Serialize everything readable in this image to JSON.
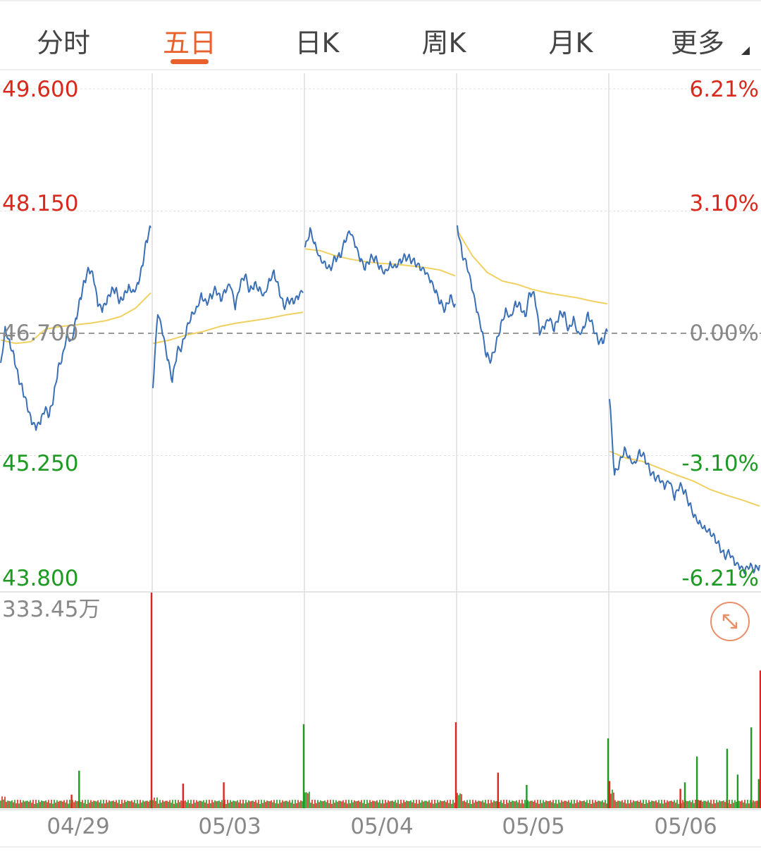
{
  "tabs": [
    {
      "label": "分时",
      "active": false
    },
    {
      "label": "五日",
      "active": true
    },
    {
      "label": "日K",
      "active": false
    },
    {
      "label": "周K",
      "active": false
    },
    {
      "label": "月K",
      "active": false
    },
    {
      "label": "更多",
      "active": false
    }
  ],
  "colors": {
    "accent": "#e8612c",
    "price_line": "#3a6fb5",
    "avg_line": "#f0d060",
    "up": "#d9281c",
    "down": "#1d9a21",
    "neutral": "#888888"
  },
  "chart_data": {
    "type": "line",
    "title": "",
    "prev_close": 46.7,
    "ylim": [
      43.8,
      49.6
    ],
    "price_ticks": [
      "49.600",
      "48.150",
      "46.700",
      "45.250",
      "43.800"
    ],
    "pct_ticks": [
      "6.21%",
      "3.10%",
      "0.00%",
      "-3.10%",
      "-6.21%"
    ],
    "volume_max_label": "333.45万",
    "volume_max": 333.45,
    "days": [
      "04/29",
      "05/03",
      "05/04",
      "05/05",
      "05/06"
    ],
    "series": [
      {
        "name": "price",
        "days": [
          [
            46.35,
            46.78,
            46.62,
            46.45,
            46.18,
            46.02,
            45.82,
            45.62,
            45.55,
            45.62,
            45.78,
            45.72,
            45.95,
            46.3,
            46.45,
            46.72,
            46.62,
            46.88,
            47.12,
            47.32,
            47.45,
            47.35,
            47.02,
            46.95,
            47.05,
            47.18,
            47.22,
            47.08,
            47.18,
            47.28,
            47.22,
            47.3,
            47.5,
            47.8,
            47.95
          ],
          [
            46.05,
            46.92,
            46.68,
            46.38,
            46.12,
            46.48,
            46.55,
            46.78,
            46.95,
            47.02,
            47.18,
            47.08,
            47.15,
            47.22,
            47.08,
            47.18,
            47.25,
            46.98,
            47.25,
            47.38,
            47.2,
            47.3,
            47.25,
            47.18,
            47.35,
            47.45,
            47.25,
            47.02,
            47.08,
            47.05,
            47.1,
            47.18
          ],
          [
            47.72,
            47.95,
            47.78,
            47.62,
            47.55,
            47.48,
            47.6,
            47.6,
            47.78,
            47.88,
            47.72,
            47.55,
            47.45,
            47.58,
            47.6,
            47.5,
            47.45,
            47.55,
            47.52,
            47.58,
            47.62,
            47.58,
            47.52,
            47.45,
            47.4,
            47.3,
            47.18,
            47.05,
            46.98,
            47.15,
            47.05
          ],
          [
            47.98,
            47.62,
            47.48,
            47.22,
            46.95,
            46.72,
            46.42,
            46.38,
            46.58,
            46.82,
            47.0,
            46.92,
            47.08,
            47.05,
            46.9,
            47.18,
            47.12,
            46.68,
            46.75,
            46.85,
            46.72,
            46.9,
            46.95,
            46.75,
            46.9,
            46.72,
            46.78,
            46.95,
            46.8,
            46.62,
            46.58,
            46.72
          ],
          [
            45.92,
            45.02,
            45.18,
            45.35,
            45.25,
            45.18,
            45.32,
            45.25,
            45.08,
            44.98,
            44.95,
            44.85,
            44.92,
            44.72,
            44.88,
            44.82,
            44.68,
            44.55,
            44.48,
            44.42,
            44.38,
            44.3,
            44.18,
            44.05,
            44.08,
            43.95,
            43.9,
            43.85,
            43.92,
            43.88,
            43.95
          ]
        ]
      },
      {
        "name": "avg",
        "days": [
          [
            46.62,
            46.58,
            46.6,
            46.75,
            46.78,
            46.8,
            46.82,
            46.85,
            46.9,
            47.0,
            47.18
          ],
          [
            46.58,
            46.62,
            46.68,
            46.72,
            46.78,
            46.82,
            46.85,
            46.88,
            46.92,
            46.95
          ],
          [
            47.7,
            47.68,
            47.62,
            47.58,
            47.55,
            47.53,
            47.52,
            47.5,
            47.48,
            47.45,
            47.38
          ],
          [
            47.92,
            47.62,
            47.42,
            47.32,
            47.28,
            47.22,
            47.18,
            47.15,
            47.12,
            47.08,
            47.05
          ],
          [
            45.3,
            45.22,
            45.18,
            45.1,
            45.02,
            44.95,
            44.85,
            44.78,
            44.72,
            44.65
          ]
        ]
      }
    ],
    "volume": {
      "spikes": [
        {
          "day": 0,
          "pos": 0.52,
          "value": 58,
          "dir": "down"
        },
        {
          "day": 0,
          "pos": 0.47,
          "value": 21,
          "dir": "up"
        },
        {
          "day": 0,
          "pos": 1.0,
          "value": 333.45,
          "dir": "up"
        },
        {
          "day": 1,
          "pos": 0.2,
          "value": 38,
          "dir": "up"
        },
        {
          "day": 1,
          "pos": 0.47,
          "value": 40,
          "dir": "up"
        },
        {
          "day": 1,
          "pos": 1.0,
          "value": 130,
          "dir": "down"
        },
        {
          "day": 2,
          "pos": 1.0,
          "value": 133,
          "dir": "up"
        },
        {
          "day": 3,
          "pos": 0.27,
          "value": 55,
          "dir": "up"
        },
        {
          "day": 3,
          "pos": 0.46,
          "value": 36,
          "dir": "down"
        },
        {
          "day": 3,
          "pos": 1.0,
          "value": 108,
          "dir": "down"
        },
        {
          "day": 4,
          "pos": 0.0,
          "value": 42,
          "dir": "up"
        },
        {
          "day": 4,
          "pos": 0.5,
          "value": 40,
          "dir": "down"
        },
        {
          "day": 4,
          "pos": 0.58,
          "value": 80,
          "dir": "down"
        },
        {
          "day": 4,
          "pos": 0.47,
          "value": 30,
          "dir": "up"
        },
        {
          "day": 4,
          "pos": 0.6,
          "value": 12,
          "dir": "up"
        },
        {
          "day": 4,
          "pos": 0.78,
          "value": 92,
          "dir": "down"
        },
        {
          "day": 4,
          "pos": 0.85,
          "value": 52,
          "dir": "down"
        },
        {
          "day": 4,
          "pos": 0.94,
          "value": 125,
          "dir": "down"
        },
        {
          "day": 4,
          "pos": 0.99,
          "value": 45,
          "dir": "down"
        },
        {
          "day": 4,
          "pos": 1.0,
          "value": 213,
          "dir": "up"
        }
      ],
      "day_open": [
        12,
        8,
        30,
        25,
        36
      ],
      "base": 6
    }
  }
}
